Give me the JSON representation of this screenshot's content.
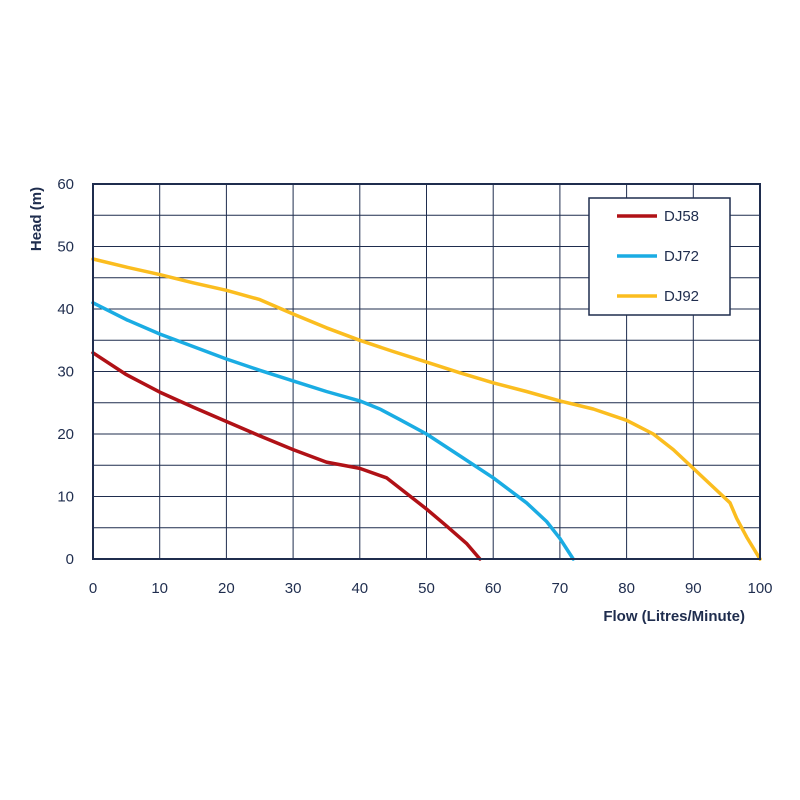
{
  "chart_data": {
    "type": "line",
    "xlabel": "Flow (Litres/Minute)",
    "ylabel": "Head (m)",
    "xlim": [
      0,
      100
    ],
    "ylim": [
      0,
      60
    ],
    "x_ticks": [
      0,
      10,
      20,
      30,
      40,
      50,
      60,
      70,
      80,
      90,
      100
    ],
    "y_ticks": [
      0,
      10,
      20,
      30,
      40,
      50,
      60
    ],
    "grid": true,
    "legend_position": "top-right",
    "colors": {
      "axis": "#1f2d4e",
      "grid": "#1f2d4e",
      "text": "#1f2d4e"
    },
    "series": [
      {
        "name": "DJ58",
        "color": "#b01116",
        "points": [
          [
            0,
            33
          ],
          [
            5,
            29.5
          ],
          [
            10,
            26.7
          ],
          [
            15,
            24.3
          ],
          [
            20,
            22
          ],
          [
            25,
            19.7
          ],
          [
            30,
            17.5
          ],
          [
            35,
            15.5
          ],
          [
            40,
            14.5
          ],
          [
            44,
            13
          ],
          [
            47,
            10.5
          ],
          [
            50,
            8
          ],
          [
            53,
            5.3
          ],
          [
            56,
            2.5
          ],
          [
            58,
            0
          ]
        ]
      },
      {
        "name": "DJ72",
        "color": "#1aace3",
        "points": [
          [
            0,
            41
          ],
          [
            5,
            38.3
          ],
          [
            10,
            36
          ],
          [
            15,
            34
          ],
          [
            20,
            32
          ],
          [
            25,
            30.2
          ],
          [
            30,
            28.5
          ],
          [
            35,
            26.8
          ],
          [
            40,
            25.3
          ],
          [
            43,
            24
          ],
          [
            46,
            22.3
          ],
          [
            50,
            20
          ],
          [
            55,
            16.5
          ],
          [
            60,
            13
          ],
          [
            65,
            9
          ],
          [
            68,
            6
          ],
          [
            70,
            3.3
          ],
          [
            72,
            0
          ]
        ]
      },
      {
        "name": "DJ92",
        "color": "#fbbd1f",
        "points": [
          [
            0,
            48
          ],
          [
            5,
            46.7
          ],
          [
            10,
            45.5
          ],
          [
            15,
            44.2
          ],
          [
            20,
            43
          ],
          [
            25,
            41.5
          ],
          [
            30,
            39.2
          ],
          [
            35,
            37
          ],
          [
            40,
            35
          ],
          [
            45,
            33.2
          ],
          [
            50,
            31.5
          ],
          [
            55,
            29.8
          ],
          [
            60,
            28.2
          ],
          [
            65,
            26.8
          ],
          [
            70,
            25.3
          ],
          [
            75,
            24
          ],
          [
            80,
            22.2
          ],
          [
            84,
            20
          ],
          [
            87,
            17.5
          ],
          [
            90,
            14.5
          ],
          [
            93,
            11.5
          ],
          [
            95.5,
            9
          ],
          [
            96.5,
            6.5
          ],
          [
            98,
            3.5
          ],
          [
            100,
            0
          ]
        ]
      }
    ]
  }
}
